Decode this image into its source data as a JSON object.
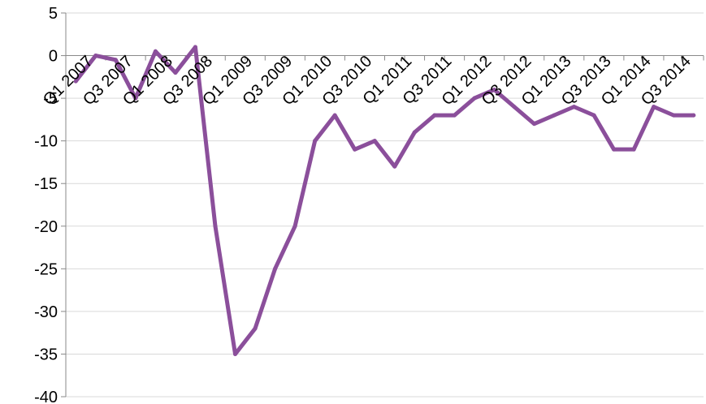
{
  "chart_data": {
    "type": "line",
    "title": "",
    "xlabel": "",
    "ylabel": "",
    "ylim": [
      -40,
      5
    ],
    "yticks": [
      5,
      0,
      -5,
      -10,
      -15,
      -20,
      -25,
      -30,
      -35,
      -40
    ],
    "grid": true,
    "legend": "none",
    "x": [
      "Q1 2007",
      "Q2 2007",
      "Q3 2007",
      "Q4 2007",
      "Q1 2008",
      "Q2 2008",
      "Q3 2008",
      "Q4 2008",
      "Q1 2009",
      "Q2 2009",
      "Q3 2009",
      "Q4 2009",
      "Q1 2010",
      "Q2 2010",
      "Q3 2010",
      "Q4 2010",
      "Q1 2011",
      "Q2 2011",
      "Q3 2011",
      "Q4 2011",
      "Q1 2012",
      "Q2 2012",
      "Q3 2012",
      "Q4 2012",
      "Q1 2013",
      "Q2 2013",
      "Q3 2013",
      "Q4 2013",
      "Q1 2014",
      "Q2 2014",
      "Q3 2014",
      "Q4 2014"
    ],
    "xtick_labels": [
      "Q1 2007",
      "Q3 2007",
      "Q1 2008",
      "Q3 2008",
      "Q1 2009",
      "Q3 2009",
      "Q1 2010",
      "Q3 2010",
      "Q1 2011",
      "Q3 2011",
      "Q1 2012",
      "Q3 2012",
      "Q1 2013",
      "Q3 2013",
      "Q1 2014",
      "Q3 2014"
    ],
    "series": [
      {
        "color": "#8b4f9b",
        "values": [
          -3,
          0,
          -0.5,
          -5,
          0.5,
          -2,
          1,
          -20,
          -35,
          -32,
          -25,
          -20,
          -10,
          -7,
          -11,
          -10,
          -13,
          -9,
          -7,
          -7,
          -5,
          -4,
          -6,
          -8,
          -7,
          -6,
          -7,
          -11,
          -11,
          -6,
          -7,
          -7
        ]
      }
    ]
  }
}
